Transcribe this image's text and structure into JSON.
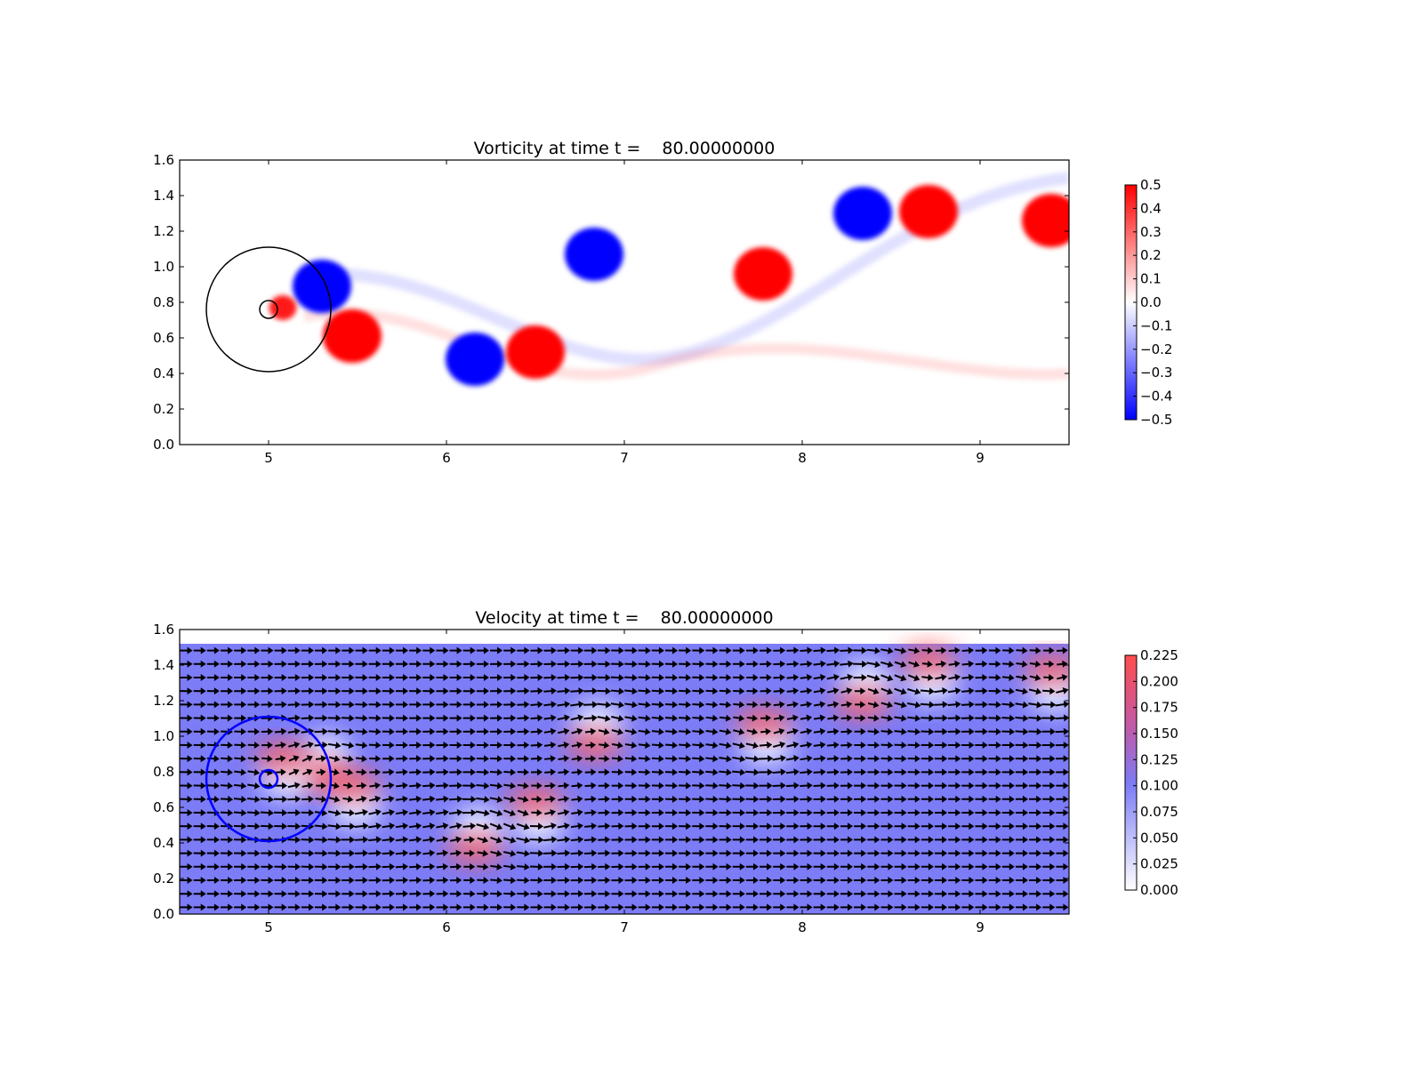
{
  "chart_data": [
    {
      "type": "heatmap",
      "title": "Vorticity at time t =    80.00000000",
      "xlabel": "",
      "ylabel": "",
      "xlim": [
        4.5,
        9.5
      ],
      "ylim": [
        0.0,
        1.6
      ],
      "xticks": [
        "5",
        "6",
        "7",
        "8",
        "9"
      ],
      "yticks": [
        "0.0",
        "0.2",
        "0.4",
        "0.6",
        "0.8",
        "1.0",
        "1.2",
        "1.4",
        "1.6"
      ],
      "colormap": "bwr",
      "colors": {
        "negative": "#0000ff",
        "zero": "#ffffff",
        "positive": "#ff0000"
      },
      "colorbar": {
        "range": [
          -0.5,
          0.5
        ],
        "ticks": [
          "0.5",
          "0.4",
          "0.3",
          "0.2",
          "0.1",
          "0.0",
          "−0.1",
          "−0.2",
          "−0.3",
          "−0.4",
          "−0.5"
        ]
      },
      "vortices": [
        {
          "x": 5.3,
          "y": 0.89,
          "w": -0.5
        },
        {
          "x": 5.47,
          "y": 0.61,
          "w": 0.5
        },
        {
          "x": 5.08,
          "y": 0.77,
          "w": 0.45
        },
        {
          "x": 6.16,
          "y": 0.48,
          "w": -0.5
        },
        {
          "x": 6.5,
          "y": 0.52,
          "w": 0.5
        },
        {
          "x": 6.83,
          "y": 1.07,
          "w": -0.5
        },
        {
          "x": 7.78,
          "y": 0.96,
          "w": 0.5
        },
        {
          "x": 8.34,
          "y": 1.3,
          "w": -0.5
        },
        {
          "x": 8.71,
          "y": 1.31,
          "w": 0.5
        },
        {
          "x": 9.4,
          "y": 1.26,
          "w": 0.5
        }
      ],
      "circles": [
        {
          "x": 5.0,
          "y": 0.76,
          "r": 0.35,
          "color": "#000000"
        },
        {
          "x": 5.0,
          "y": 0.76,
          "r": 0.05,
          "color": "#000000"
        }
      ]
    },
    {
      "type": "heatmap",
      "title": "Velocity at time t =    80.00000000",
      "xlabel": "",
      "ylabel": "",
      "xlim": [
        4.5,
        9.5
      ],
      "ylim": [
        0.0,
        1.6
      ],
      "xticks": [
        "5",
        "6",
        "7",
        "8",
        "9"
      ],
      "yticks": [
        "0.0",
        "0.2",
        "0.4",
        "0.6",
        "0.8",
        "1.0",
        "1.2",
        "1.4",
        "1.6"
      ],
      "colormap": "white-blue-red",
      "colors": {
        "low": "#ffffff",
        "mid": "#7c7cf7",
        "high": "#ff4d4d",
        "arrow": "#000000"
      },
      "colorbar": {
        "range": [
          0.0,
          0.225
        ],
        "ticks": [
          "0.225",
          "0.200",
          "0.175",
          "0.150",
          "0.125",
          "0.100",
          "0.075",
          "0.050",
          "0.025",
          "0.000"
        ]
      },
      "field_ylim": [
        0.0,
        1.52
      ],
      "circles": [
        {
          "x": 5.0,
          "y": 0.76,
          "r": 0.35,
          "color": "#0000ff"
        },
        {
          "x": 5.0,
          "y": 0.76,
          "r": 0.05,
          "color": "#0000ff"
        }
      ]
    }
  ]
}
